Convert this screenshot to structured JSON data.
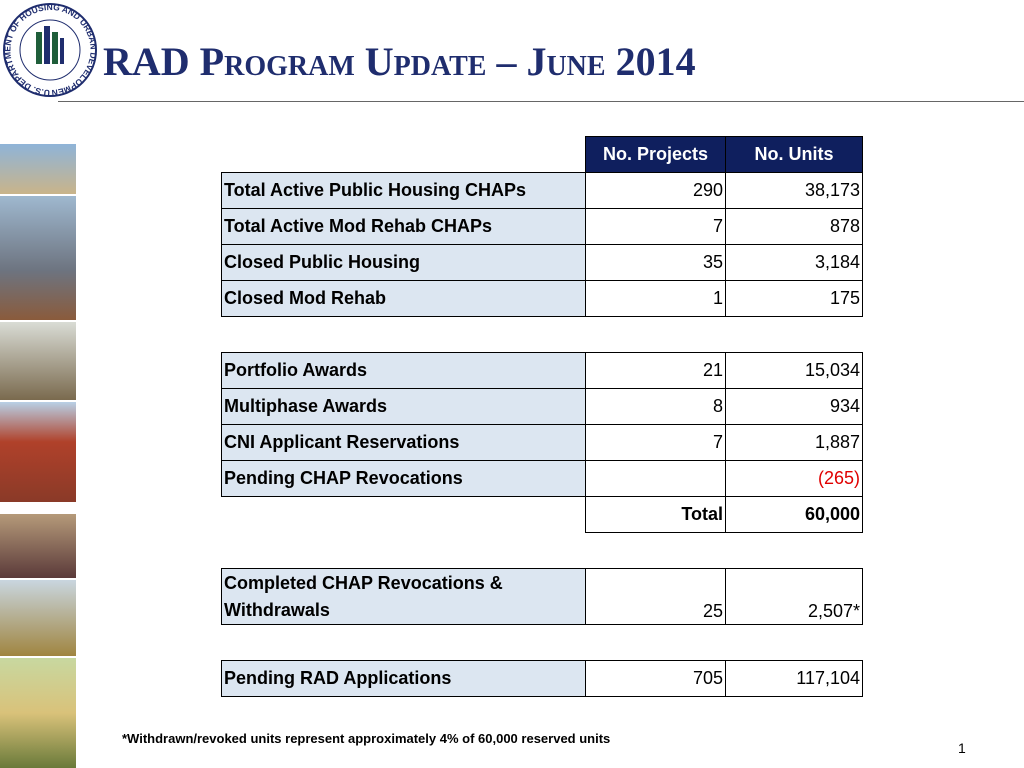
{
  "header": {
    "logo_text": "U.S. DEPARTMENT OF HOUSING AND URBAN DEVELOPMENT",
    "title": "RAD Program Update – June 2014"
  },
  "table": {
    "columns": [
      "No. Projects",
      "No. Units"
    ],
    "groups": [
      [
        {
          "label": "Total Active Public Housing CHAPs",
          "projects": "290",
          "units": "38,173"
        },
        {
          "label": "Total Active Mod Rehab CHAPs",
          "projects": "7",
          "units": "878"
        },
        {
          "label": "Closed Public Housing",
          "projects": "35",
          "units": "3,184"
        },
        {
          "label": "Closed Mod Rehab",
          "projects": "1",
          "units": "175"
        }
      ],
      [
        {
          "label": "Portfolio Awards",
          "projects": "21",
          "units": "15,034"
        },
        {
          "label": "Multiphase Awards",
          "projects": "8",
          "units": "934"
        },
        {
          "label": "CNI Applicant Reservations",
          "projects": "7",
          "units": "1,887"
        },
        {
          "label": "Pending CHAP Revocations",
          "projects": null,
          "units": "(265)"
        }
      ],
      [
        {
          "label": "Completed CHAP Revocations & Withdrawals",
          "projects": "25",
          "units": "2,507*"
        }
      ],
      [
        {
          "label": "Pending RAD Applications",
          "projects": "705",
          "units": "117,104"
        }
      ]
    ],
    "total": {
      "label": "Total",
      "units": "60,000"
    }
  },
  "footnote": "*Withdrawn/revoked units represent approximately 4% of 60,000 reserved units",
  "page_number": "1"
}
